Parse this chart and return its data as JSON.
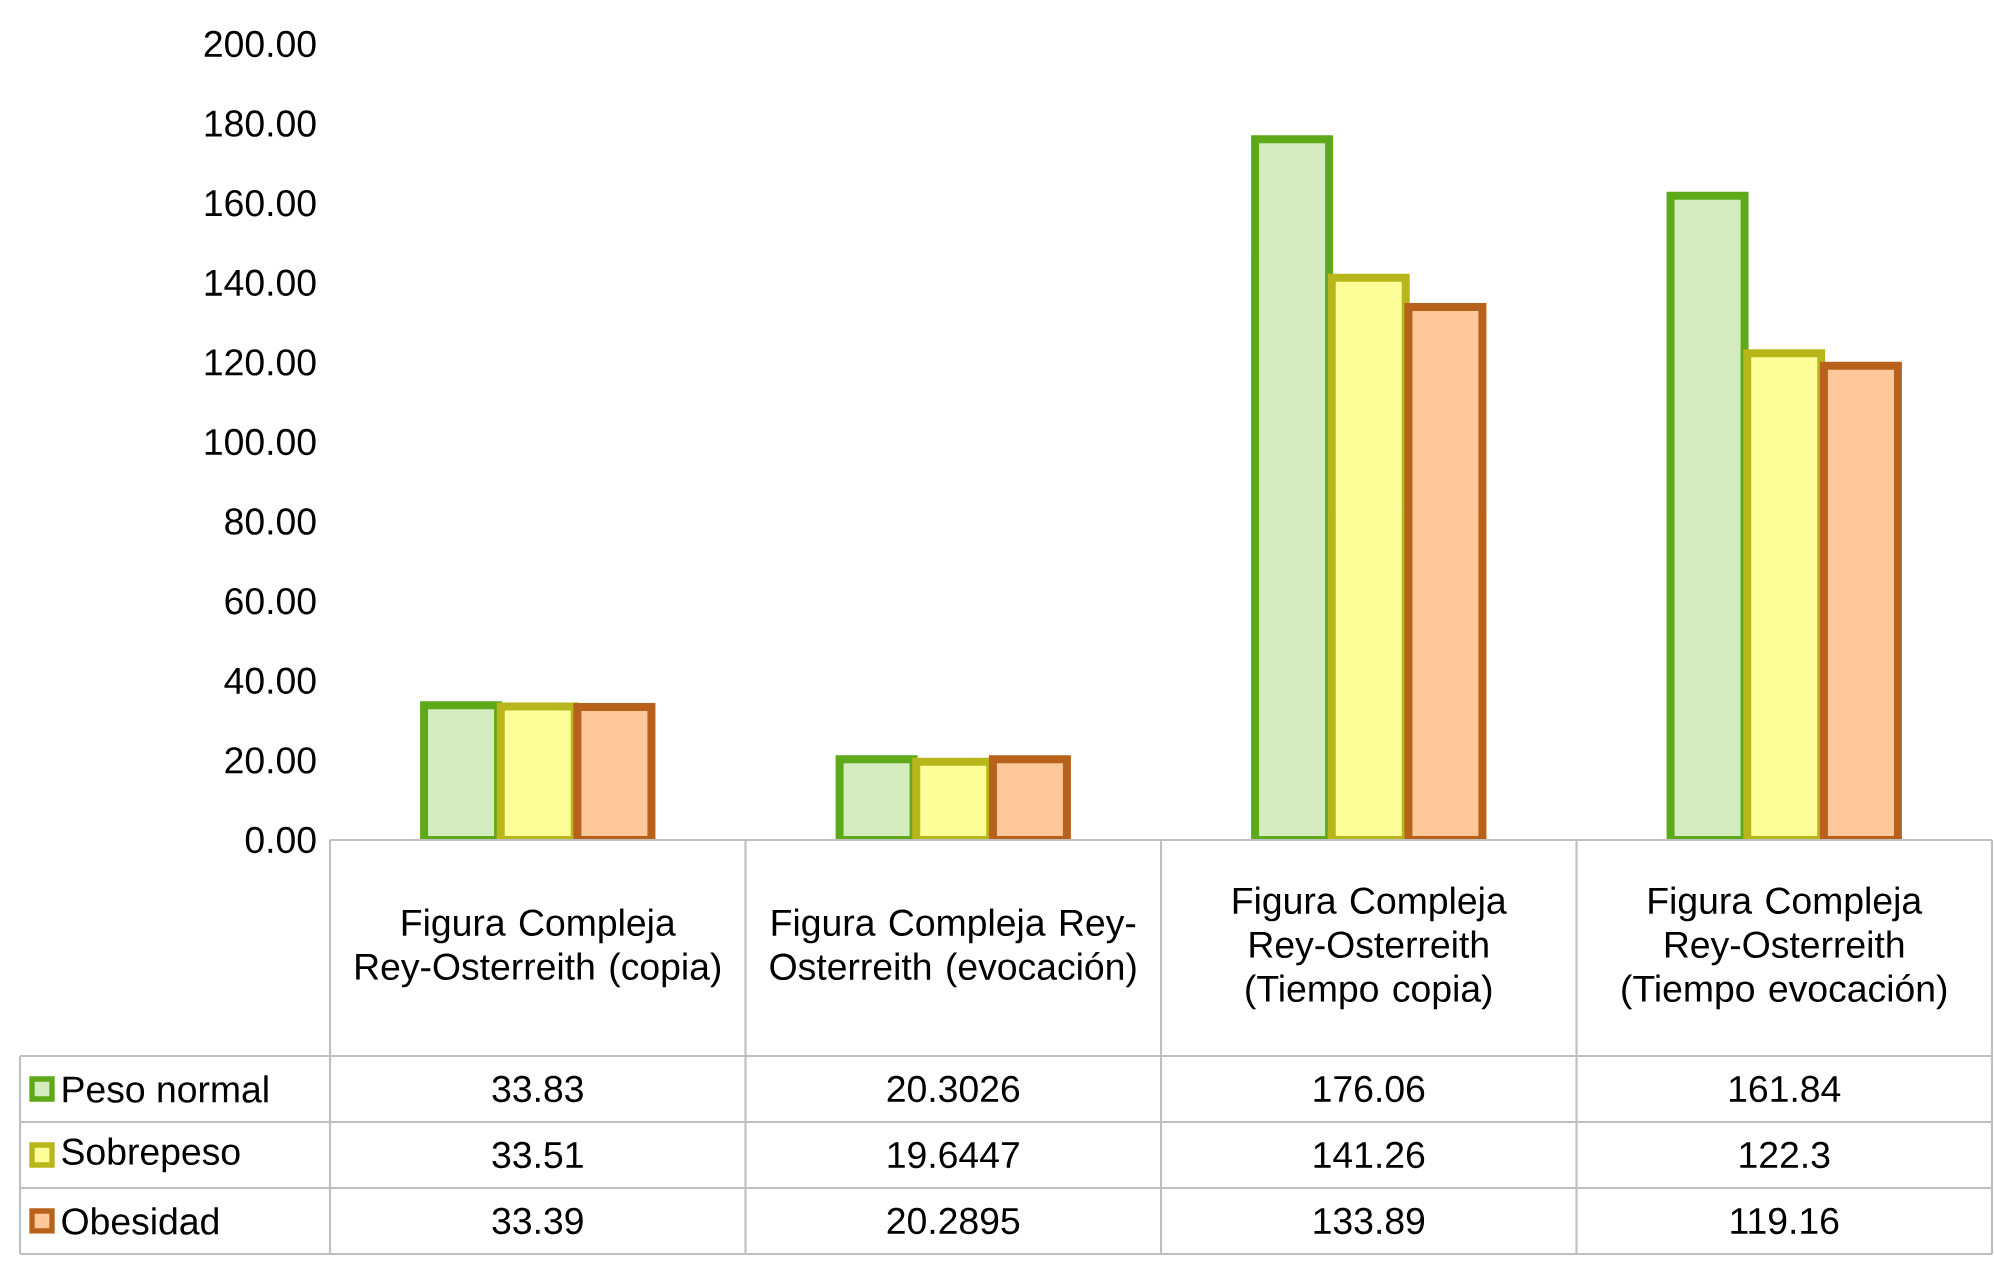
{
  "chart_data": {
    "type": "bar",
    "categories": [
      "Figura Compleja Rey-Osterreith (copia)",
      "Figura Compleja Rey-Osterreith (evocación)",
      "Figura Compleja Rey-Osterreith (Tiempo copia)",
      "Figura Compleja Rey-Osterreith (Tiempo evocación)"
    ],
    "series": [
      {
        "name": "Peso normal",
        "color": "#d5ecc0",
        "values": [
          33.83,
          20.3026,
          176.06,
          161.84
        ]
      },
      {
        "name": "Sobrepeso",
        "color": "#ffff9a",
        "values": [
          33.51,
          19.6447,
          141.26,
          122.3
        ]
      },
      {
        "name": "Obesidad",
        "color": "#ffc89b",
        "values": [
          33.39,
          20.2895,
          133.89,
          119.16
        ]
      }
    ],
    "ylim": [
      0,
      200
    ],
    "yticks": [
      {
        "value": 0,
        "label": "0.00"
      },
      {
        "value": 20,
        "label": "20.00"
      },
      {
        "value": 40,
        "label": "40.00"
      },
      {
        "value": 60,
        "label": "60.00"
      },
      {
        "value": 80,
        "label": "80.00"
      },
      {
        "value": 100,
        "label": "100.00"
      },
      {
        "value": 120,
        "label": "120.00"
      },
      {
        "value": 140,
        "label": "140.00"
      },
      {
        "value": 160,
        "label": "160.00"
      },
      {
        "value": 180,
        "label": "180.00"
      },
      {
        "value": 200,
        "label": "200.00"
      }
    ],
    "data_labels": true,
    "legend": "bottom left"
  }
}
